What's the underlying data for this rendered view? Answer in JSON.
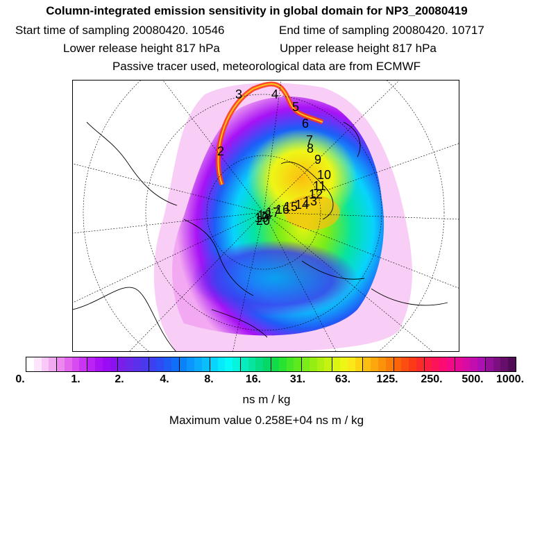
{
  "header": {
    "title": "Column-integrated emission sensitivity in global domain for NP3_20080419",
    "start_time": "Start time of sampling 20080420. 10546",
    "end_time": "End time of sampling 20080420. 10717",
    "lower_height": "Lower release height  817 hPa",
    "upper_height": "Upper release height  817 hPa",
    "tracer_note": "Passive tracer used, meteorological data are from ECMWF"
  },
  "map": {
    "projection": "polar stereographic, north pole",
    "trajectory_labels": [
      "3",
      "4",
      "5",
      "6",
      "7",
      "8",
      "9",
      "10",
      "11",
      "12",
      "13",
      "14",
      "15",
      "16",
      "17",
      "18",
      "19",
      "20",
      "2"
    ]
  },
  "colorbar": {
    "tick_labels": [
      "0.",
      "1.",
      "2.",
      "4.",
      "8.",
      "16.",
      "31.",
      "63.",
      "125.",
      "250.",
      "500.",
      "1000."
    ],
    "colors": [
      "#ffffff",
      "#fde6fb",
      "#f9c8f6",
      "#f3a9f1",
      "#ec88ee",
      "#e267ee",
      "#d74cf0",
      "#c935f2",
      "#bb22f4",
      "#a812f5",
      "#9a0cf3",
      "#8a12ee",
      "#7a1eea",
      "#6a28e8",
      "#5a30ea",
      "#4a38ec",
      "#3c40f0",
      "#2e4cf4",
      "#1f5cf6",
      "#106ef8",
      "#0a82fa",
      "#0a96fc",
      "#0aaafc",
      "#0abefc",
      "#08d4fc",
      "#06eafc",
      "#06fafa",
      "#06f4dc",
      "#06ecbe",
      "#06e4a0",
      "#06dc84",
      "#06d868",
      "#10dc4a",
      "#28e232",
      "#44e626",
      "#5ee81e",
      "#7aec18",
      "#94ee14",
      "#aef012",
      "#c6f212",
      "#dcf412",
      "#eef616",
      "#fae818",
      "#fcd414",
      "#fcbe10",
      "#fca80c",
      "#fc920a",
      "#fc7c0a",
      "#fc640c",
      "#fc4e10",
      "#fc3a18",
      "#fc2a28",
      "#fc1e40",
      "#fc1458",
      "#fc0c72",
      "#f40a88",
      "#e60a98",
      "#d60ca4",
      "#c20eae",
      "#ac10b4",
      "#941098",
      "#7c1080",
      "#660e6a",
      "#500c54"
    ],
    "units": "ns m / kg"
  },
  "footer": {
    "max_value": "Maximum value  0.258E+04 ns m / kg"
  }
}
